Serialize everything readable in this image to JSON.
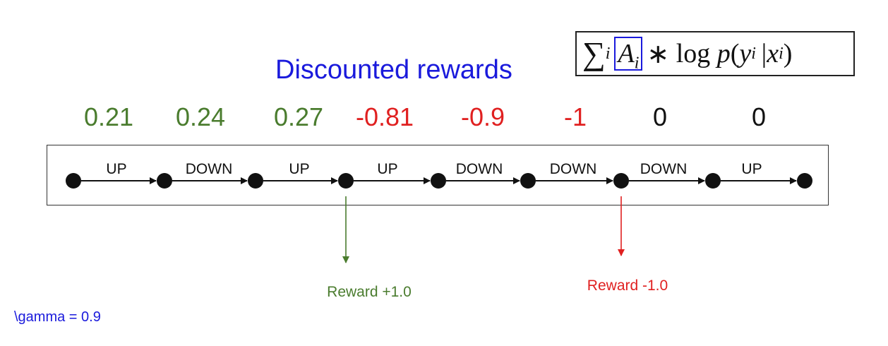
{
  "title": "Discounted rewards",
  "formula": {
    "sum": "∑",
    "sum_index": "i",
    "advantage": "A",
    "advantage_index": "i",
    "operator": "∗",
    "log": "log",
    "p": "p",
    "open_paren": "(",
    "y": "y",
    "y_index": "i",
    "bar": "|",
    "x": "x",
    "x_index": "i",
    "close_paren": ")",
    "highlight_color": "#1a1adc"
  },
  "discounted_values": [
    {
      "text": "0.21",
      "sign": "positive"
    },
    {
      "text": "0.24",
      "sign": "positive"
    },
    {
      "text": "0.27",
      "sign": "positive"
    },
    {
      "text": "-0.81",
      "sign": "negative"
    },
    {
      "text": "-0.9",
      "sign": "negative"
    },
    {
      "text": "-1",
      "sign": "negative"
    },
    {
      "text": "0",
      "sign": "zero"
    },
    {
      "text": "0",
      "sign": "zero"
    }
  ],
  "actions": [
    "UP",
    "DOWN",
    "UP",
    "UP",
    "DOWN",
    "DOWN",
    "DOWN",
    "UP"
  ],
  "rewards": {
    "positive": {
      "label": "Reward +1.0",
      "color": "#4a7c2e"
    },
    "negative": {
      "label": "Reward -1.0",
      "color": "#e02020"
    }
  },
  "gamma": "\\gamma = 0.9",
  "colors": {
    "title": "#1a1adc",
    "positive": "#4a7c2e",
    "negative": "#e02020",
    "zero": "#111111"
  }
}
